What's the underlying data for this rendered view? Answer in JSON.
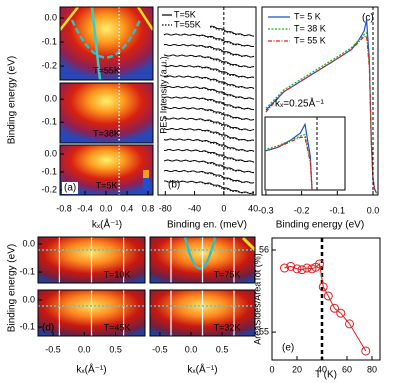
{
  "chart_data": [
    {
      "type": "image",
      "panel": "(a)",
      "y_label": "Binding energy (eV)",
      "x_label": "kₓ(Å⁻¹)",
      "xlim": [
        -0.876,
        0.895
      ],
      "xticks": [
        -0.8,
        -0.4,
        {
          "value": 0,
          "label": "0.0"
        },
        0.4,
        0.8
      ],
      "vline": 0.25,
      "subpanels": [
        {
          "label": "T=55K",
          "ylim": [
            -0.258,
            0.046
          ],
          "yticks": [
            {
              "value": 0,
              "label": "0.0"
            },
            -0.1,
            -0.2
          ]
        },
        {
          "label": "T=38K",
          "ylim": [
            -0.19,
            0.07
          ],
          "yticks": [
            {
              "value": 0,
              "label": "0.0"
            },
            -0.1
          ]
        },
        {
          "label": "T=5K",
          "ylim": [
            -0.228,
            0.05
          ],
          "yticks": [
            {
              "value": 0,
              "label": "0.0"
            },
            -0.1,
            -0.2
          ]
        }
      ]
    },
    {
      "type": "edc",
      "panel": "(b)",
      "y_label": "PES Intensity (a.u.)",
      "x_label": "Binding en. (meV)",
      "xlim": [
        -90,
        44
      ],
      "xticks": [
        -80,
        -40,
        0,
        40
      ],
      "vline": 0,
      "series": [
        {
          "name": "T=5K",
          "color": "#000000"
        },
        {
          "name": "T=55K",
          "color": "#000000"
        }
      ]
    },
    {
      "type": "line",
      "panel": "(c)",
      "x_label": "Binding energy (eV)",
      "annotation": "kₓ=0.25Å⁻¹",
      "xlim": [
        -0.311,
        0.014
      ],
      "ylim": [
        0,
        1.02
      ],
      "xticks": [
        -0.3,
        -0.2,
        -0.1,
        {
          "value": 0,
          "label": "0.0"
        }
      ],
      "vline": 0,
      "inset": {
        "xlim": [
          -0.078,
          0.042
        ],
        "ylim": [
          0.5,
          1.0
        ]
      },
      "x": [
        -0.3,
        -0.25,
        -0.2,
        -0.15,
        -0.1,
        -0.06,
        -0.04,
        -0.025,
        -0.018,
        -0.01,
        -0.005,
        0,
        0.005,
        0.01
      ],
      "series": [
        {
          "name": "T= 5 K",
          "color": "#1f4fd0",
          "values": [
            0.46,
            0.56,
            0.62,
            0.68,
            0.74,
            0.79,
            0.84,
            0.89,
            0.95,
            0.73,
            0.3,
            0.08,
            0.03,
            0.01
          ]
        },
        {
          "name": "T= 38 K",
          "color": "#20b020",
          "values": [
            0.47,
            0.57,
            0.63,
            0.69,
            0.75,
            0.8,
            0.84,
            0.87,
            0.88,
            0.7,
            0.3,
            0.09,
            0.03,
            0.01
          ]
        },
        {
          "name": "T= 55 K",
          "color": "#e02020",
          "values": [
            0.45,
            0.56,
            0.62,
            0.68,
            0.74,
            0.79,
            0.83,
            0.86,
            0.86,
            0.69,
            0.31,
            0.09,
            0.03,
            0.01
          ]
        }
      ]
    },
    {
      "type": "image",
      "panel": "(d)",
      "y_label": "Binding energy (eV)",
      "x_label": "kₓ(Å⁻¹)",
      "rows": [
        {
          "ylim": [
            -0.139,
            0.025
          ],
          "yticks": [
            {
              "value": 0,
              "label": "0.0"
            },
            -0.1
          ]
        },
        {
          "ylim": [
            -0.133,
            0.037
          ],
          "yticks": [
            {
              "value": 0,
              "label": "0.0"
            },
            -0.1
          ]
        }
      ],
      "columns": [
        {
          "xlim": [
            -0.74,
            0.97
          ],
          "xticks": [
            -0.5,
            {
              "value": 0,
              "label": "0.0"
            },
            0.5
          ]
        },
        {
          "xlim": [
            -0.66,
            1.03
          ],
          "xticks": [
            -0.5,
            {
              "value": 0,
              "label": "0.0"
            },
            0.5
          ]
        }
      ],
      "labels": [
        [
          "T=10K",
          "T=75K"
        ],
        [
          "T=45K",
          "T=32K"
        ]
      ]
    },
    {
      "type": "scatter",
      "panel": "(e)",
      "y_label": "AreaSides/AreaTot (%)",
      "x_label": "T (K)",
      "xlim": [
        0,
        86.4
      ],
      "ylim": [
        54.66,
        56.146
      ],
      "xticks": [
        0,
        20,
        40,
        60,
        80
      ],
      "yticks": [
        55,
        56
      ],
      "vline": 40,
      "color": "#e02020",
      "x": [
        10,
        15,
        20,
        24,
        28,
        32,
        35,
        38,
        41,
        45,
        50,
        55,
        62,
        75
      ],
      "values": [
        55.78,
        55.8,
        55.77,
        55.76,
        55.78,
        55.77,
        55.79,
        55.83,
        55.55,
        55.44,
        55.29,
        55.23,
        55.1,
        54.77
      ]
    }
  ]
}
